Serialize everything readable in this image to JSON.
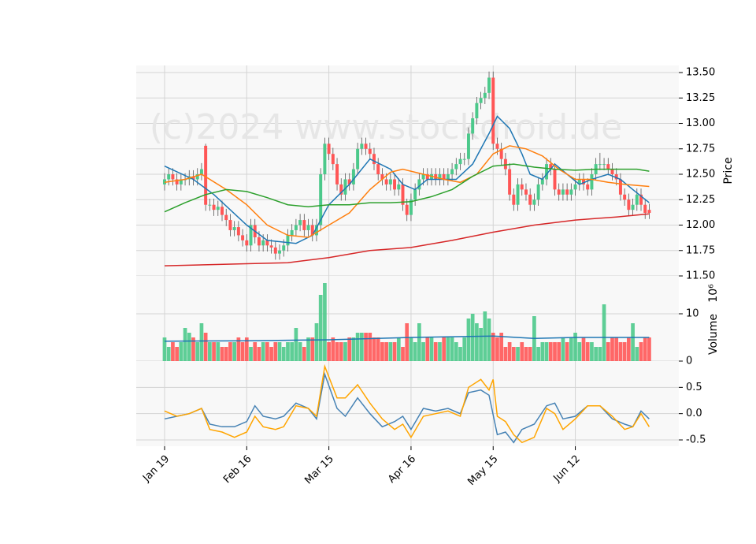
{
  "chart_data": [
    {
      "type": "candlestick",
      "watermark": "(c)2024 www.stockdroid.de",
      "ylabel": "Price",
      "up_color": "#4cc98b",
      "down_color": "#ff5656",
      "xlim": [
        -6.9,
        125.2
      ],
      "ylim": [
        11.5,
        13.57
      ],
      "yticks": [
        {
          "value": 11.5,
          "label": "11.50"
        },
        {
          "value": 11.75,
          "label": "11.75"
        },
        {
          "value": 12,
          "label": "12.00"
        },
        {
          "value": 12.25,
          "label": "12.25"
        },
        {
          "value": 12.5,
          "label": "12.50"
        },
        {
          "value": 12.75,
          "label": "12.75"
        },
        {
          "value": 13,
          "label": "13.00"
        },
        {
          "value": 13.25,
          "label": "13.25"
        },
        {
          "value": 13.5,
          "label": "13.50"
        }
      ],
      "grid": true,
      "open": [
        12.4,
        12.45,
        12.5,
        12.45,
        12.4,
        12.45,
        12.45,
        12.48,
        12.45,
        12.5,
        12.78,
        12.2,
        12.2,
        12.15,
        12.18,
        12.1,
        12.05,
        11.95,
        11.98,
        11.9,
        11.85,
        11.8,
        12.0,
        11.88,
        11.8,
        11.85,
        11.8,
        11.78,
        11.72,
        11.75,
        11.8,
        11.9,
        11.95,
        12.0,
        12.05,
        11.95,
        12.0,
        11.9,
        12.0,
        12.5,
        12.8,
        12.7,
        12.6,
        12.4,
        12.3,
        12.45,
        12.4,
        12.55,
        12.75,
        12.8,
        12.75,
        12.7,
        12.6,
        12.5,
        12.45,
        12.4,
        12.45,
        12.35,
        12.4,
        12.2,
        12.1,
        12.25,
        12.35,
        12.45,
        12.5,
        12.45,
        12.5,
        12.45,
        12.5,
        12.45,
        12.5,
        12.55,
        12.6,
        12.65,
        12.65,
        12.9,
        13.05,
        13.2,
        13.25,
        13.3,
        13.45,
        12.8,
        12.75,
        12.65,
        12.55,
        12.3,
        12.2,
        12.4,
        12.35,
        12.3,
        12.2,
        12.25,
        12.4,
        12.45,
        12.6,
        12.55,
        12.35,
        12.3,
        12.35,
        12.3,
        12.35,
        12.4,
        12.45,
        12.4,
        12.35,
        12.5,
        12.6,
        12.6,
        12.6,
        12.55,
        12.5,
        12.45,
        12.3,
        12.25,
        12.15,
        12.2,
        12.3,
        12.2,
        12.15
      ],
      "high": [
        12.51,
        12.56,
        12.56,
        12.51,
        12.51,
        12.51,
        12.54,
        12.54,
        12.56,
        12.61,
        12.8,
        12.26,
        12.26,
        12.24,
        12.24,
        12.16,
        12.11,
        12.04,
        12.04,
        11.96,
        11.91,
        12.06,
        12.06,
        11.94,
        11.91,
        11.91,
        11.86,
        11.84,
        11.81,
        11.86,
        11.96,
        12.01,
        12.06,
        12.11,
        12.11,
        12.06,
        12.06,
        12.06,
        12.56,
        12.86,
        12.86,
        12.76,
        12.66,
        12.46,
        12.51,
        12.51,
        12.61,
        12.81,
        12.86,
        12.86,
        12.81,
        12.76,
        12.66,
        12.56,
        12.51,
        12.51,
        12.51,
        12.46,
        12.46,
        12.26,
        12.31,
        12.41,
        12.51,
        12.56,
        12.56,
        12.56,
        12.56,
        12.56,
        12.56,
        12.56,
        12.61,
        12.66,
        12.71,
        12.71,
        12.96,
        13.11,
        13.26,
        13.31,
        13.36,
        13.51,
        13.51,
        12.86,
        12.81,
        12.71,
        12.61,
        12.36,
        12.46,
        12.46,
        12.41,
        12.36,
        12.31,
        12.46,
        12.51,
        12.66,
        12.66,
        12.61,
        12.41,
        12.41,
        12.41,
        12.41,
        12.46,
        12.51,
        12.51,
        12.46,
        12.56,
        12.66,
        12.71,
        12.66,
        12.66,
        12.61,
        12.56,
        12.51,
        12.36,
        12.31,
        12.26,
        12.36,
        12.36,
        12.26,
        12.21
      ],
      "low": [
        12.34,
        12.39,
        12.39,
        12.34,
        12.34,
        12.39,
        12.39,
        12.39,
        12.39,
        12.44,
        12.14,
        12.14,
        12.09,
        12.09,
        12.04,
        11.99,
        11.89,
        11.89,
        11.84,
        11.79,
        11.74,
        11.74,
        11.82,
        11.74,
        11.74,
        11.74,
        11.72,
        11.66,
        11.66,
        11.69,
        11.74,
        11.84,
        11.89,
        11.94,
        11.89,
        11.89,
        11.84,
        11.84,
        11.94,
        12.44,
        12.64,
        12.54,
        12.34,
        12.24,
        12.24,
        12.34,
        12.34,
        12.49,
        12.69,
        12.69,
        12.64,
        12.54,
        12.44,
        12.39,
        12.34,
        12.34,
        12.29,
        12.29,
        12.14,
        12.04,
        12.04,
        12.19,
        12.29,
        12.39,
        12.39,
        12.39,
        12.39,
        12.39,
        12.39,
        12.39,
        12.44,
        12.49,
        12.54,
        12.59,
        12.59,
        12.84,
        12.99,
        13.14,
        13.19,
        13.24,
        12.74,
        12.69,
        12.59,
        12.49,
        12.24,
        12.14,
        12.14,
        12.29,
        12.24,
        12.14,
        12.14,
        12.19,
        12.34,
        12.39,
        12.49,
        12.29,
        12.24,
        12.24,
        12.24,
        12.24,
        12.29,
        12.34,
        12.34,
        12.29,
        12.29,
        12.44,
        12.54,
        12.54,
        12.49,
        12.44,
        12.39,
        12.24,
        12.19,
        12.09,
        12.09,
        12.14,
        12.14,
        12.06,
        12.06
      ],
      "close": [
        12.45,
        12.5,
        12.45,
        12.4,
        12.45,
        12.45,
        12.48,
        12.45,
        12.5,
        12.55,
        12.2,
        12.2,
        12.15,
        12.18,
        12.1,
        12.05,
        11.95,
        11.98,
        11.9,
        11.85,
        11.8,
        12.0,
        11.88,
        11.8,
        11.85,
        11.8,
        11.78,
        11.72,
        11.75,
        11.8,
        11.9,
        11.95,
        12.0,
        12.05,
        11.95,
        12.0,
        11.9,
        12.0,
        12.5,
        12.8,
        12.7,
        12.6,
        12.4,
        12.3,
        12.45,
        12.4,
        12.55,
        12.75,
        12.8,
        12.75,
        12.7,
        12.6,
        12.5,
        12.45,
        12.4,
        12.45,
        12.35,
        12.4,
        12.2,
        12.1,
        12.25,
        12.35,
        12.45,
        12.5,
        12.45,
        12.5,
        12.45,
        12.5,
        12.45,
        12.5,
        12.55,
        12.6,
        12.65,
        12.65,
        12.9,
        13.05,
        13.2,
        13.25,
        13.3,
        13.45,
        12.8,
        12.75,
        12.65,
        12.55,
        12.3,
        12.2,
        12.4,
        12.35,
        12.3,
        12.2,
        12.25,
        12.4,
        12.45,
        12.6,
        12.55,
        12.35,
        12.3,
        12.35,
        12.3,
        12.35,
        12.4,
        12.45,
        12.4,
        12.35,
        12.5,
        12.6,
        12.6,
        12.6,
        12.55,
        12.5,
        12.45,
        12.3,
        12.25,
        12.15,
        12.2,
        12.3,
        12.2,
        12.12,
        12.12
      ],
      "series": [
        {
          "color": "#1f77b4",
          "x": [
            0,
            7,
            12,
            20,
            25,
            32,
            36,
            40,
            45,
            50,
            55,
            58,
            61,
            64,
            68,
            71,
            75,
            79,
            81,
            84,
            87,
            89,
            92,
            95,
            98,
            101,
            104,
            108,
            111,
            114,
            118
          ],
          "values": [
            12.58,
            12.45,
            12.3,
            12.0,
            11.85,
            11.82,
            11.9,
            12.2,
            12.4,
            12.65,
            12.55,
            12.4,
            12.35,
            12.45,
            12.45,
            12.45,
            12.6,
            12.9,
            13.07,
            12.95,
            12.7,
            12.5,
            12.45,
            12.6,
            12.5,
            12.4,
            12.45,
            12.5,
            12.45,
            12.35,
            12.22
          ]
        },
        {
          "color": "#ff7f0e",
          "x": [
            0,
            5,
            9,
            15,
            20,
            25,
            30,
            35,
            40,
            45,
            50,
            55,
            58,
            63,
            68,
            72,
            76,
            80,
            84,
            88,
            92,
            96,
            100,
            104,
            108,
            112,
            118
          ],
          "values": [
            12.42,
            12.45,
            12.5,
            12.35,
            12.2,
            12.0,
            11.9,
            11.88,
            12.0,
            12.12,
            12.35,
            12.52,
            12.55,
            12.5,
            12.45,
            12.42,
            12.5,
            12.7,
            12.78,
            12.75,
            12.68,
            12.55,
            12.45,
            12.45,
            12.42,
            12.4,
            12.38
          ]
        },
        {
          "color": "#2ca02c",
          "x": [
            0,
            5,
            10,
            15,
            20,
            25,
            30,
            35,
            40,
            45,
            50,
            55,
            60,
            65,
            70,
            75,
            80,
            85,
            90,
            95,
            100,
            105,
            110,
            115,
            118
          ],
          "values": [
            12.13,
            12.22,
            12.3,
            12.35,
            12.33,
            12.27,
            12.2,
            12.18,
            12.2,
            12.2,
            12.22,
            12.22,
            12.23,
            12.28,
            12.35,
            12.48,
            12.58,
            12.6,
            12.57,
            12.55,
            12.54,
            12.55,
            12.55,
            12.55,
            12.53
          ]
        },
        {
          "color": "#d62728",
          "x": [
            0,
            20,
            30,
            40,
            50,
            60,
            70,
            80,
            90,
            100,
            110,
            118
          ],
          "values": [
            11.6,
            11.62,
            11.63,
            11.68,
            11.75,
            11.78,
            11.85,
            11.93,
            12.0,
            12.05,
            12.08,
            12.11
          ]
        }
      ]
    },
    {
      "type": "volume",
      "ylabel": "Volume",
      "ylabel_scale": "10⁶",
      "up_color": "#4cc98b",
      "down_color": "#ff5656",
      "xlim": [
        -6.9,
        125.2
      ],
      "ylim": [
        0,
        18
      ],
      "yticks": [
        0,
        10
      ],
      "grid": true,
      "values": [
        5,
        3,
        4,
        3,
        4,
        7,
        6,
        5,
        4,
        8,
        6,
        4,
        4,
        4,
        3,
        3,
        4,
        4,
        5,
        4,
        5,
        3,
        4,
        3,
        4,
        4,
        3,
        4,
        4,
        3,
        4,
        4,
        7,
        4,
        3,
        5,
        5,
        8,
        14,
        16.5,
        4,
        5,
        4,
        4,
        4,
        5,
        5,
        6,
        6,
        6,
        6,
        5,
        5,
        4,
        4,
        4,
        4,
        5,
        3,
        8,
        5,
        4,
        8,
        4,
        5,
        5,
        4,
        4,
        5,
        5,
        5,
        4,
        3,
        5,
        9,
        10,
        8,
        7,
        10.5,
        9,
        6,
        5,
        6,
        3,
        4,
        3,
        3,
        4,
        3,
        3,
        9.5,
        3,
        4,
        4,
        4,
        4,
        4,
        5,
        4,
        5,
        6,
        4,
        5,
        4,
        4,
        3,
        3,
        12,
        4,
        5,
        5,
        4,
        4,
        5,
        8,
        3,
        4,
        5,
        5
      ],
      "series": [
        {
          "color": "#1f77b4",
          "x": [
            0,
            20,
            40,
            60,
            80,
            90,
            100,
            118
          ],
          "values": [
            4.2,
            4.3,
            4.5,
            5.0,
            5.3,
            4.8,
            5.0,
            5.0
          ]
        }
      ]
    },
    {
      "type": "line",
      "xlim": [
        -6.9,
        125.2
      ],
      "ylim": [
        -0.62,
        1.0
      ],
      "yticks": [
        {
          "value": -0.5,
          "label": "-0.5"
        },
        {
          "value": 0,
          "label": "0.0"
        },
        {
          "value": 0.5,
          "label": "0.5"
        }
      ],
      "grid": true,
      "xticks": [
        {
          "value": 0,
          "label": "Jan 19"
        },
        {
          "value": 20,
          "label": "Feb 16"
        },
        {
          "value": 40,
          "label": "Mar 15"
        },
        {
          "value": 60,
          "label": "Apr 16"
        },
        {
          "value": 80,
          "label": "May 15"
        },
        {
          "value": 100,
          "label": "Jun 12"
        }
      ],
      "series": [
        {
          "color": "#4682b4",
          "x": [
            0,
            3,
            6,
            9,
            11,
            14,
            17,
            20,
            22,
            24,
            27,
            29,
            32,
            35,
            37,
            39,
            42,
            44,
            47,
            50,
            53,
            56,
            58,
            60,
            63,
            66,
            69,
            72,
            74,
            77,
            79,
            81,
            83,
            85,
            87,
            90,
            93,
            95,
            97,
            100,
            103,
            106,
            109,
            112,
            114,
            116,
            118
          ],
          "values": [
            -0.1,
            -0.05,
            0.0,
            0.1,
            -0.2,
            -0.25,
            -0.25,
            -0.15,
            0.15,
            -0.05,
            -0.1,
            -0.05,
            0.2,
            0.1,
            -0.1,
            0.75,
            0.1,
            -0.05,
            0.3,
            0.0,
            -0.25,
            -0.15,
            -0.05,
            -0.3,
            0.1,
            0.05,
            0.1,
            0.0,
            0.4,
            0.45,
            0.35,
            -0.4,
            -0.35,
            -0.55,
            -0.3,
            -0.2,
            0.15,
            0.2,
            -0.1,
            -0.05,
            0.15,
            0.15,
            -0.1,
            -0.2,
            -0.25,
            0.05,
            -0.1
          ]
        },
        {
          "color": "#ffa500",
          "x": [
            0,
            3,
            6,
            9,
            11,
            14,
            17,
            20,
            22,
            24,
            27,
            29,
            32,
            35,
            37,
            39,
            42,
            44,
            47,
            50,
            53,
            56,
            58,
            60,
            63,
            66,
            69,
            72,
            74,
            77,
            79,
            80,
            81,
            83,
            85,
            87,
            90,
            93,
            95,
            97,
            100,
            103,
            106,
            109,
            112,
            114,
            116,
            118
          ],
          "values": [
            0.05,
            -0.05,
            0.0,
            0.1,
            -0.3,
            -0.35,
            -0.45,
            -0.35,
            -0.05,
            -0.25,
            -0.3,
            -0.25,
            0.15,
            0.1,
            -0.05,
            0.9,
            0.3,
            0.3,
            0.55,
            0.2,
            -0.1,
            -0.3,
            -0.2,
            -0.45,
            -0.05,
            0.0,
            0.05,
            -0.05,
            0.5,
            0.65,
            0.45,
            0.65,
            -0.05,
            -0.15,
            -0.4,
            -0.55,
            -0.45,
            0.1,
            0.0,
            -0.3,
            -0.1,
            0.15,
            0.15,
            -0.05,
            -0.3,
            -0.25,
            0.0,
            -0.25
          ]
        }
      ]
    }
  ]
}
